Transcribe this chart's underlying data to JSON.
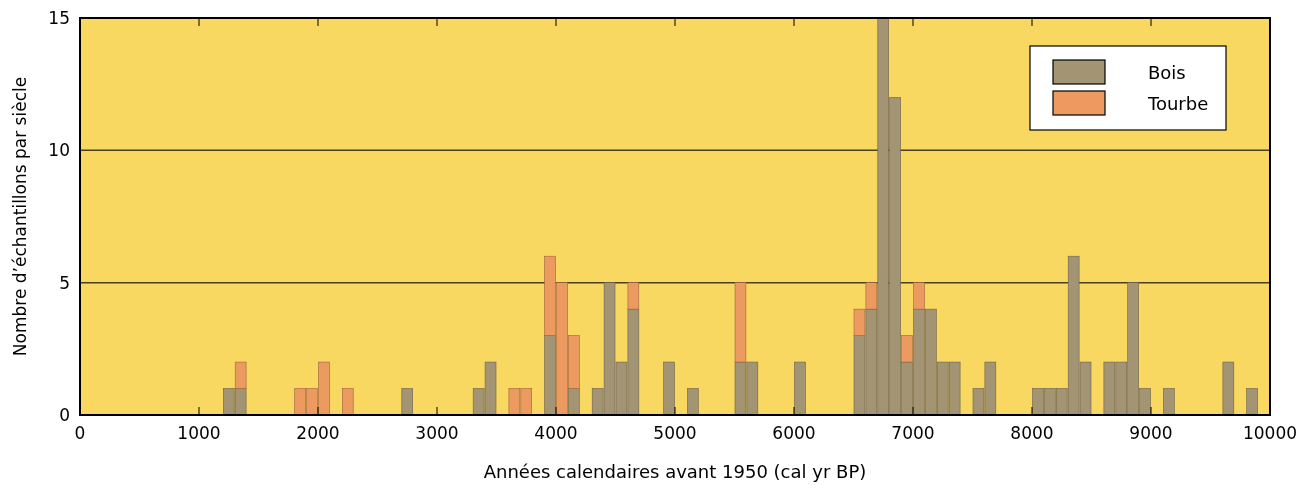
{
  "chart_data": {
    "type": "bar",
    "stacked": true,
    "xlabel": "Années calendaires avant 1950 (cal yr BP)",
    "ylabel": "Nombre d’échantillons par siècle",
    "x": [
      1250,
      1350,
      1850,
      1950,
      2050,
      2250,
      2750,
      3350,
      3450,
      3650,
      3750,
      3950,
      4050,
      4150,
      4350,
      4450,
      4550,
      4650,
      4950,
      5150,
      5550,
      5650,
      6050,
      6550,
      6650,
      6750,
      6850,
      6950,
      7050,
      7150,
      7250,
      7350,
      7550,
      7650,
      8050,
      8150,
      8250,
      8350,
      8450,
      8650,
      8750,
      8850,
      8950,
      9150,
      9650,
      9850
    ],
    "series": [
      {
        "name": "Bois",
        "color": "#a39573",
        "values": [
          1,
          1,
          0,
          0,
          0,
          0,
          1,
          1,
          2,
          0,
          0,
          3,
          0,
          1,
          1,
          5,
          2,
          4,
          2,
          1,
          2,
          2,
          2,
          3,
          4,
          15,
          12,
          2,
          4,
          4,
          2,
          2,
          1,
          2,
          1,
          1,
          1,
          6,
          2,
          2,
          2,
          5,
          1,
          1,
          2,
          1
        ]
      },
      {
        "name": "Tourbe",
        "color": "#ec9a60",
        "values": [
          0,
          1,
          1,
          1,
          2,
          1,
          0,
          0,
          0,
          1,
          1,
          3,
          5,
          2,
          0,
          0,
          0,
          1,
          0,
          0,
          3,
          0,
          0,
          1,
          1,
          0,
          0,
          1,
          1,
          0,
          0,
          0,
          0,
          0,
          0,
          0,
          0,
          0,
          0,
          0,
          0,
          0,
          0,
          0,
          0,
          0
        ]
      }
    ],
    "xlim": [
      0,
      10000
    ],
    "xticks": [
      0,
      1000,
      2000,
      3000,
      4000,
      5000,
      6000,
      7000,
      8000,
      9000,
      10000
    ],
    "ylim": [
      0,
      15
    ],
    "yticks": [
      0,
      5,
      10,
      15
    ],
    "grid": "y",
    "legend": "top right"
  }
}
